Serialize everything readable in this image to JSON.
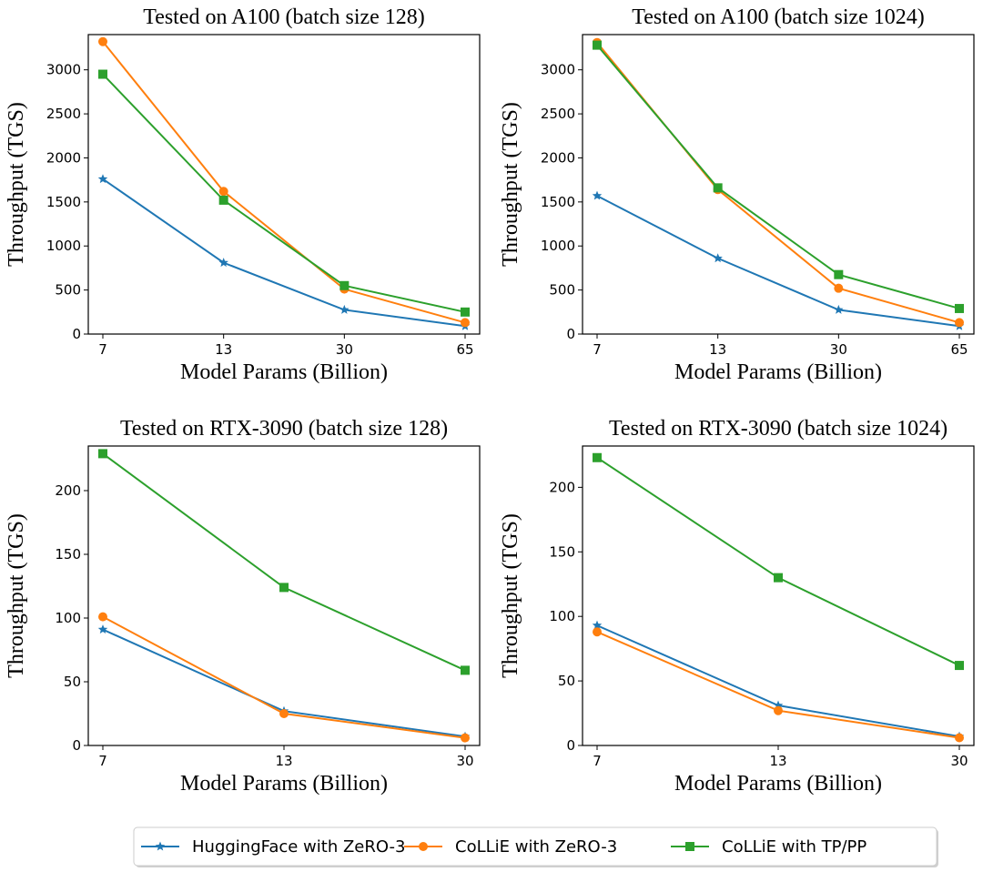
{
  "legend": {
    "placement": "bottom-center",
    "entries": [
      {
        "name": "HuggingFace with ZeRO-3",
        "color": "#1f77b4",
        "marker": "star"
      },
      {
        "name": "CoLLiE with ZeRO-3",
        "color": "#ff7f0e",
        "marker": "circle"
      },
      {
        "name": "CoLLiE with TP/PP",
        "color": "#2ca02c",
        "marker": "square"
      }
    ]
  },
  "chart_data": [
    {
      "type": "line",
      "title": "Tested on A100 (batch size 128)",
      "xlabel": "Model Params (Billion)",
      "ylabel": "Throughput (TGS)",
      "categories": [
        "7",
        "13",
        "30",
        "65"
      ],
      "ylim": [
        0,
        3400
      ],
      "yticks": [
        0,
        500,
        1000,
        1500,
        2000,
        2500,
        3000
      ],
      "grid": false,
      "series": [
        {
          "name": "HuggingFace with ZeRO-3",
          "values": [
            1760,
            810,
            275,
            90
          ]
        },
        {
          "name": "CoLLiE with ZeRO-3",
          "values": [
            3320,
            1620,
            510,
            130
          ]
        },
        {
          "name": "CoLLiE with TP/PP",
          "values": [
            2950,
            1520,
            550,
            250
          ]
        }
      ]
    },
    {
      "type": "line",
      "title": "Tested on A100 (batch size 1024)",
      "xlabel": "Model Params (Billion)",
      "ylabel": "Throughput (TGS)",
      "categories": [
        "7",
        "13",
        "30",
        "65"
      ],
      "ylim": [
        0,
        3400
      ],
      "yticks": [
        0,
        500,
        1000,
        1500,
        2000,
        2500,
        3000
      ],
      "grid": false,
      "series": [
        {
          "name": "HuggingFace with ZeRO-3",
          "values": [
            1570,
            860,
            275,
            90
          ]
        },
        {
          "name": "CoLLiE with ZeRO-3",
          "values": [
            3310,
            1640,
            520,
            130
          ]
        },
        {
          "name": "CoLLiE with TP/PP",
          "values": [
            3280,
            1660,
            675,
            290
          ]
        }
      ]
    },
    {
      "type": "line",
      "title": "Tested on RTX-3090 (batch size 128)",
      "xlabel": "Model Params (Billion)",
      "ylabel": "Throughput (TGS)",
      "categories": [
        "7",
        "13",
        "30"
      ],
      "ylim": [
        0,
        235
      ],
      "yticks": [
        0,
        50,
        100,
        150,
        200
      ],
      "grid": false,
      "series": [
        {
          "name": "HuggingFace with ZeRO-3",
          "values": [
            91,
            27,
            7
          ]
        },
        {
          "name": "CoLLiE with ZeRO-3",
          "values": [
            101,
            25,
            6
          ]
        },
        {
          "name": "CoLLiE with TP/PP",
          "values": [
            229,
            124,
            59
          ]
        }
      ]
    },
    {
      "type": "line",
      "title": "Tested on RTX-3090 (batch size 1024)",
      "xlabel": "Model Params (Billion)",
      "ylabel": "Throughput (TGS)",
      "categories": [
        "7",
        "13",
        "30"
      ],
      "ylim": [
        0,
        232
      ],
      "yticks": [
        0,
        50,
        100,
        150,
        200
      ],
      "grid": false,
      "series": [
        {
          "name": "HuggingFace with ZeRO-3",
          "values": [
            93,
            31,
            7
          ]
        },
        {
          "name": "CoLLiE with ZeRO-3",
          "values": [
            88,
            27,
            6
          ]
        },
        {
          "name": "CoLLiE with TP/PP",
          "values": [
            223,
            130,
            62
          ]
        }
      ]
    }
  ]
}
